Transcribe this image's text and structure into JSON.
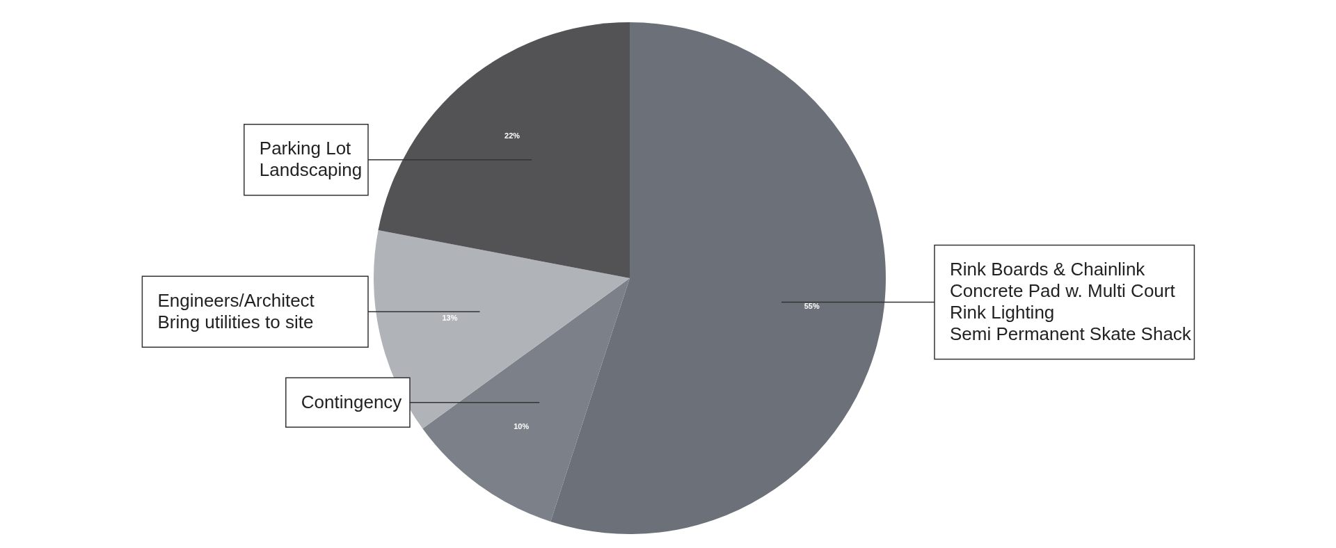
{
  "chart_data": {
    "type": "pie",
    "categories": [
      "Rink Boards & Chainlink\nConcrete Pad w. Multi Court\nRink Lighting\nSemi Permanent Skate Shack",
      "Contingency",
      "Engineers/Architect\nBring utilities to site",
      "Parking Lot\nLandscaping"
    ],
    "values": [
      55,
      10,
      13,
      22
    ],
    "value_labels": [
      "55%",
      "10%",
      "13%",
      "22%"
    ],
    "colors": [
      "#6c7079",
      "#7b8089",
      "#b0b3b8",
      "#535356"
    ]
  }
}
